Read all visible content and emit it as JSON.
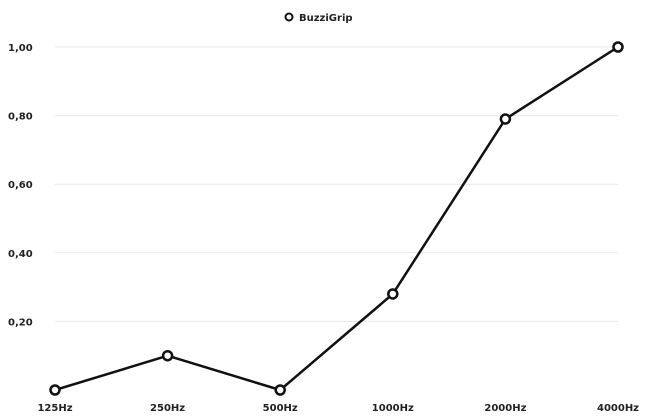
{
  "chart_data": {
    "type": "line",
    "categories": [
      "125Hz",
      "250Hz",
      "500Hz",
      "1000Hz",
      "2000Hz",
      "4000Hz"
    ],
    "series": [
      {
        "name": "BuzziGrip",
        "values": [
          0.0,
          0.1,
          0.0,
          0.28,
          0.79,
          1.0
        ]
      }
    ],
    "yticks": [
      "0,20",
      "0,40",
      "0,60",
      "0,80",
      "1,00"
    ],
    "ylim": [
      0,
      1.0
    ],
    "grid": true,
    "legend": "top-center",
    "colors": {
      "line": "#111111",
      "marker_fill": "#ffffff",
      "grid": "#e8e8e8"
    }
  }
}
